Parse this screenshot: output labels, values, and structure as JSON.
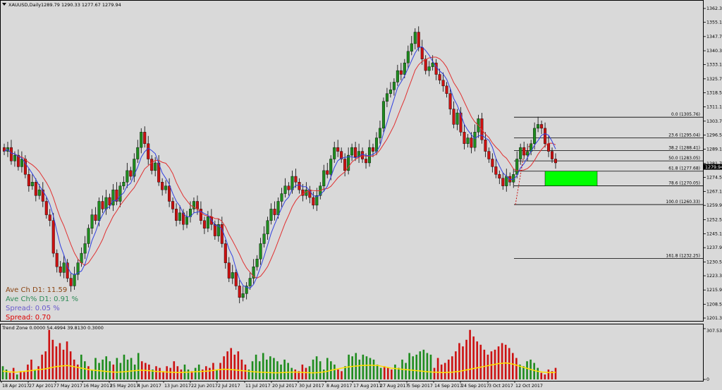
{
  "header": {
    "symbol": "XAUUSD,Daily",
    "ohlc": "1289.79 1290.33 1277.67 1279.94",
    "indicator_title": "Trend Zone 0.0000 54.4994 39.8130 0.3000"
  },
  "stats": {
    "ave_ch": "Ave Ch D1: 11.59",
    "ave_ch_pct": "Ave Ch% D1: 0.91 %",
    "spread_pct": "Spread: 0.05 %",
    "spread": "Spread: 0.70"
  },
  "colors": {
    "background": "#d9d9d9",
    "bull": "#1e8c1e",
    "bear": "#cc1111",
    "ma_fast": "#3040e0",
    "ma_slow": "#e03030",
    "zone": "#00ff00",
    "signal": "#ffe000",
    "text_ave_ch": "#8b4513",
    "text_ave_ch_pct": "#2e8b57",
    "text_spread_pct": "#6a5acd",
    "text_spread": "#dd0000"
  },
  "chart_data": [
    {
      "type": "candlestick",
      "title": "XAUUSD,Daily",
      "y_ticks": [
        "1362.30",
        "1355.10",
        "1347.70",
        "1340.30",
        "1333.10",
        "1325.70",
        "1318.50",
        "1311.10",
        "1303.70",
        "1296.50",
        "1289.10",
        "1281.70",
        "1274.50",
        "1267.10",
        "1259.90",
        "1252.50",
        "1245.10",
        "1237.90",
        "1230.50",
        "1223.30",
        "1215.90",
        "1208.50",
        "1201.30"
      ],
      "ylim": [
        1201.3,
        1362.3
      ],
      "current_price": "1279.94",
      "x_ticks": [
        "18 Apr 2017",
        "27 Apr 2017",
        "7 May 2017",
        "16 May 2017",
        "25 May 2017",
        "4 Jun 2017",
        "13 Jun 2017",
        "22 Jun 2017",
        "2 Jul 2017",
        "11 Jul 2017",
        "20 Jul 2017",
        "30 Jul 2017",
        "8 Aug 2017",
        "17 Aug 2017",
        "27 Aug 2017",
        "5 Sep 2017",
        "14 Sep 2017",
        "24 Sep 2017",
        "3 Oct 2017",
        "12 Oct 2017"
      ],
      "closes": [
        1288,
        1290,
        1283,
        1286,
        1280,
        1284,
        1276,
        1270,
        1272,
        1265,
        1268,
        1262,
        1255,
        1252,
        1235,
        1228,
        1225,
        1230,
        1222,
        1218,
        1224,
        1230,
        1235,
        1240,
        1248,
        1255,
        1252,
        1262,
        1258,
        1264,
        1260,
        1268,
        1262,
        1270,
        1272,
        1278,
        1275,
        1284,
        1290,
        1298,
        1292,
        1284,
        1278,
        1282,
        1272,
        1268,
        1270,
        1262,
        1258,
        1252,
        1256,
        1250,
        1254,
        1258,
        1262,
        1258,
        1252,
        1248,
        1254,
        1250,
        1244,
        1250,
        1240,
        1230,
        1222,
        1225,
        1218,
        1212,
        1214,
        1218,
        1222,
        1228,
        1232,
        1240,
        1245,
        1252,
        1258,
        1255,
        1262,
        1266,
        1270,
        1268,
        1275,
        1272,
        1268,
        1265,
        1268,
        1264,
        1260,
        1265,
        1270,
        1278,
        1276,
        1284,
        1290,
        1288,
        1284,
        1278,
        1286,
        1290,
        1285,
        1288,
        1284,
        1282,
        1290,
        1288,
        1295,
        1300,
        1314,
        1318,
        1320,
        1324,
        1330,
        1328,
        1334,
        1340,
        1344,
        1350,
        1342,
        1336,
        1330,
        1332,
        1334,
        1328,
        1325,
        1322,
        1318,
        1310,
        1302,
        1308,
        1298,
        1292,
        1295,
        1290,
        1298,
        1305,
        1294,
        1288,
        1284,
        1280,
        1276,
        1274,
        1270,
        1275,
        1272,
        1276,
        1284,
        1290,
        1286,
        1288,
        1292,
        1300,
        1302,
        1300,
        1292,
        1288,
        1284,
        1282
      ],
      "zone_band": [
        1270.05,
        1277.68
      ],
      "annotation_date_1": "3 Oct 2017",
      "fib_levels": [
        {
          "ratio": "0.0",
          "price": "1305.76",
          "label": "0.0 (1305.76)"
        },
        {
          "ratio": "23.6",
          "price": "1295.04",
          "label": "23.6 (1295.04)"
        },
        {
          "ratio": "38.2",
          "price": "1288.41",
          "label": "38.2 (1288.41)"
        },
        {
          "ratio": "50.0",
          "price": "1283.05",
          "label": "50.0 (1283.05)"
        },
        {
          "ratio": "61.8",
          "price": "1277.68",
          "label": "61.8 (1277.68)"
        },
        {
          "ratio": "78.6",
          "price": "1270.05",
          "label": "78.6 (1270.05)"
        },
        {
          "ratio": "100.0",
          "price": "1260.33",
          "label": "100.0 (1260.33)"
        },
        {
          "ratio": "161.8",
          "price": "1232.25",
          "label": "161.8 (1232.25)"
        }
      ],
      "grid": false
    },
    {
      "type": "bar",
      "title": "Trend Zone 0.0000 54.4994 39.8130 0.3000",
      "y_ticks": [
        "307.5303",
        "0"
      ],
      "ylim": [
        0,
        307.5303
      ],
      "bars": [
        {
          "v": 80,
          "c": "g"
        },
        {
          "v": 60,
          "c": "g"
        },
        {
          "v": 40,
          "c": "r"
        },
        {
          "v": 70,
          "c": "r"
        },
        {
          "v": 30,
          "c": "g"
        },
        {
          "v": 50,
          "c": "r"
        },
        {
          "v": 45,
          "c": "r"
        },
        {
          "v": 90,
          "c": "r"
        },
        {
          "v": 120,
          "c": "r"
        },
        {
          "v": 60,
          "c": "g"
        },
        {
          "v": 80,
          "c": "r"
        },
        {
          "v": 150,
          "c": "r"
        },
        {
          "v": 170,
          "c": "r"
        },
        {
          "v": 300,
          "c": "r"
        },
        {
          "v": 240,
          "c": "r"
        },
        {
          "v": 200,
          "c": "r"
        },
        {
          "v": 220,
          "c": "r"
        },
        {
          "v": 180,
          "c": "r"
        },
        {
          "v": 230,
          "c": "r"
        },
        {
          "v": 170,
          "c": "r"
        },
        {
          "v": 120,
          "c": "r"
        },
        {
          "v": 90,
          "c": "r"
        },
        {
          "v": 150,
          "c": "g"
        },
        {
          "v": 110,
          "c": "g"
        },
        {
          "v": 80,
          "c": "r"
        },
        {
          "v": 60,
          "c": "g"
        },
        {
          "v": 130,
          "c": "g"
        },
        {
          "v": 100,
          "c": "g"
        },
        {
          "v": 120,
          "c": "g"
        },
        {
          "v": 140,
          "c": "g"
        },
        {
          "v": 110,
          "c": "g"
        },
        {
          "v": 90,
          "c": "r"
        },
        {
          "v": 130,
          "c": "g"
        },
        {
          "v": 100,
          "c": "g"
        },
        {
          "v": 150,
          "c": "g"
        },
        {
          "v": 120,
          "c": "g"
        },
        {
          "v": 130,
          "c": "g"
        },
        {
          "v": 90,
          "c": "g"
        },
        {
          "v": 160,
          "c": "g"
        },
        {
          "v": 110,
          "c": "r"
        },
        {
          "v": 100,
          "c": "r"
        },
        {
          "v": 90,
          "c": "r"
        },
        {
          "v": 60,
          "c": "g"
        },
        {
          "v": 80,
          "c": "r"
        },
        {
          "v": 70,
          "c": "r"
        },
        {
          "v": 50,
          "c": "r"
        },
        {
          "v": 80,
          "c": "r"
        },
        {
          "v": 70,
          "c": "r"
        },
        {
          "v": 110,
          "c": "r"
        },
        {
          "v": 80,
          "c": "r"
        },
        {
          "v": 60,
          "c": "r"
        },
        {
          "v": 90,
          "c": "g"
        },
        {
          "v": 60,
          "c": "g"
        },
        {
          "v": 50,
          "c": "r"
        },
        {
          "v": 70,
          "c": "g"
        },
        {
          "v": 90,
          "c": "g"
        },
        {
          "v": 60,
          "c": "r"
        },
        {
          "v": 80,
          "c": "r"
        },
        {
          "v": 70,
          "c": "r"
        },
        {
          "v": 100,
          "c": "r"
        },
        {
          "v": 60,
          "c": "g"
        },
        {
          "v": 100,
          "c": "r"
        },
        {
          "v": 140,
          "c": "r"
        },
        {
          "v": 170,
          "c": "r"
        },
        {
          "v": 190,
          "c": "r"
        },
        {
          "v": 150,
          "c": "r"
        },
        {
          "v": 170,
          "c": "r"
        },
        {
          "v": 120,
          "c": "r"
        },
        {
          "v": 90,
          "c": "r"
        },
        {
          "v": 60,
          "c": "g"
        },
        {
          "v": 110,
          "c": "g"
        },
        {
          "v": 150,
          "c": "g"
        },
        {
          "v": 110,
          "c": "g"
        },
        {
          "v": 160,
          "c": "g"
        },
        {
          "v": 120,
          "c": "g"
        },
        {
          "v": 140,
          "c": "g"
        },
        {
          "v": 130,
          "c": "g"
        },
        {
          "v": 110,
          "c": "g"
        },
        {
          "v": 90,
          "c": "g"
        },
        {
          "v": 120,
          "c": "g"
        },
        {
          "v": 100,
          "c": "g"
        },
        {
          "v": 70,
          "c": "g"
        },
        {
          "v": 60,
          "c": "r"
        },
        {
          "v": 50,
          "c": "r"
        },
        {
          "v": 90,
          "c": "r"
        },
        {
          "v": 70,
          "c": "r"
        },
        {
          "v": 80,
          "c": "g"
        },
        {
          "v": 120,
          "c": "g"
        },
        {
          "v": 140,
          "c": "g"
        },
        {
          "v": 110,
          "c": "g"
        },
        {
          "v": 60,
          "c": "g"
        },
        {
          "v": 130,
          "c": "g"
        },
        {
          "v": 110,
          "c": "g"
        },
        {
          "v": 90,
          "c": "g"
        },
        {
          "v": 60,
          "c": "r"
        },
        {
          "v": 50,
          "c": "r"
        },
        {
          "v": 80,
          "c": "g"
        },
        {
          "v": 150,
          "c": "g"
        },
        {
          "v": 140,
          "c": "g"
        },
        {
          "v": 160,
          "c": "g"
        },
        {
          "v": 120,
          "c": "g"
        },
        {
          "v": 150,
          "c": "g"
        },
        {
          "v": 140,
          "c": "g"
        },
        {
          "v": 130,
          "c": "g"
        },
        {
          "v": 120,
          "c": "g"
        },
        {
          "v": 90,
          "c": "g"
        },
        {
          "v": 70,
          "c": "g"
        },
        {
          "v": 80,
          "c": "r"
        },
        {
          "v": 70,
          "c": "r"
        },
        {
          "v": 60,
          "c": "r"
        },
        {
          "v": 90,
          "c": "g"
        },
        {
          "v": 70,
          "c": "g"
        },
        {
          "v": 120,
          "c": "g"
        },
        {
          "v": 100,
          "c": "g"
        },
        {
          "v": 160,
          "c": "g"
        },
        {
          "v": 140,
          "c": "g"
        },
        {
          "v": 150,
          "c": "g"
        },
        {
          "v": 170,
          "c": "g"
        },
        {
          "v": 180,
          "c": "g"
        },
        {
          "v": 160,
          "c": "g"
        },
        {
          "v": 150,
          "c": "g"
        },
        {
          "v": 70,
          "c": "r"
        },
        {
          "v": 130,
          "c": "r"
        },
        {
          "v": 90,
          "c": "r"
        },
        {
          "v": 100,
          "c": "r"
        },
        {
          "v": 120,
          "c": "r"
        },
        {
          "v": 140,
          "c": "r"
        },
        {
          "v": 170,
          "c": "r"
        },
        {
          "v": 220,
          "c": "r"
        },
        {
          "v": 200,
          "c": "r"
        },
        {
          "v": 240,
          "c": "r"
        },
        {
          "v": 300,
          "c": "r"
        },
        {
          "v": 260,
          "c": "r"
        },
        {
          "v": 230,
          "c": "r"
        },
        {
          "v": 210,
          "c": "r"
        },
        {
          "v": 180,
          "c": "r"
        },
        {
          "v": 150,
          "c": "r"
        },
        {
          "v": 170,
          "c": "r"
        },
        {
          "v": 180,
          "c": "r"
        },
        {
          "v": 200,
          "c": "r"
        },
        {
          "v": 220,
          "c": "r"
        },
        {
          "v": 210,
          "c": "r"
        },
        {
          "v": 190,
          "c": "r"
        },
        {
          "v": 160,
          "c": "r"
        },
        {
          "v": 130,
          "c": "r"
        },
        {
          "v": 90,
          "c": "g"
        },
        {
          "v": 80,
          "c": "g"
        },
        {
          "v": 110,
          "c": "g"
        },
        {
          "v": 120,
          "c": "g"
        },
        {
          "v": 100,
          "c": "g"
        },
        {
          "v": 70,
          "c": "g"
        },
        {
          "v": 40,
          "c": "r"
        },
        {
          "v": 30,
          "c": "r"
        },
        {
          "v": 60,
          "c": "r"
        },
        {
          "v": 50,
          "c": "r"
        },
        {
          "v": 70,
          "c": "r"
        }
      ],
      "signal_line": [
        50,
        48,
        46,
        45,
        44,
        46,
        48,
        50,
        52,
        55,
        58,
        60,
        62,
        65,
        70,
        74,
        78,
        80,
        82,
        84,
        82,
        78,
        74,
        70,
        66,
        62,
        58,
        56,
        54,
        52,
        50,
        48,
        46,
        45,
        44,
        45,
        46,
        48,
        50,
        52,
        54,
        56,
        55,
        54,
        52,
        50,
        48,
        47,
        46,
        45,
        44,
        43,
        42,
        42,
        43,
        44,
        45,
        46,
        47,
        48,
        49,
        50,
        52,
        55,
        58,
        60,
        62,
        61,
        60,
        58,
        56,
        54,
        52,
        50,
        48,
        46,
        45,
        44,
        43,
        42,
        41,
        40,
        40,
        41,
        42,
        43,
        44,
        45,
        44,
        43,
        42,
        41,
        40,
        40,
        41,
        43,
        46,
        50,
        55,
        60,
        64,
        68,
        72,
        75,
        78,
        80,
        82,
        84,
        85,
        86,
        86,
        85,
        84,
        80,
        76,
        72,
        68,
        66,
        64,
        62,
        60,
        58,
        56,
        54,
        52,
        50,
        48,
        46,
        45,
        44,
        43,
        42,
        42,
        43,
        44,
        46,
        48,
        52,
        56,
        60,
        64,
        68,
        72,
        76,
        80,
        84,
        88,
        92,
        96,
        98,
        100,
        98,
        94,
        88,
        82,
        76,
        70,
        64,
        58,
        52,
        48,
        45,
        43,
        42,
        42,
        43
      ]
    }
  ]
}
